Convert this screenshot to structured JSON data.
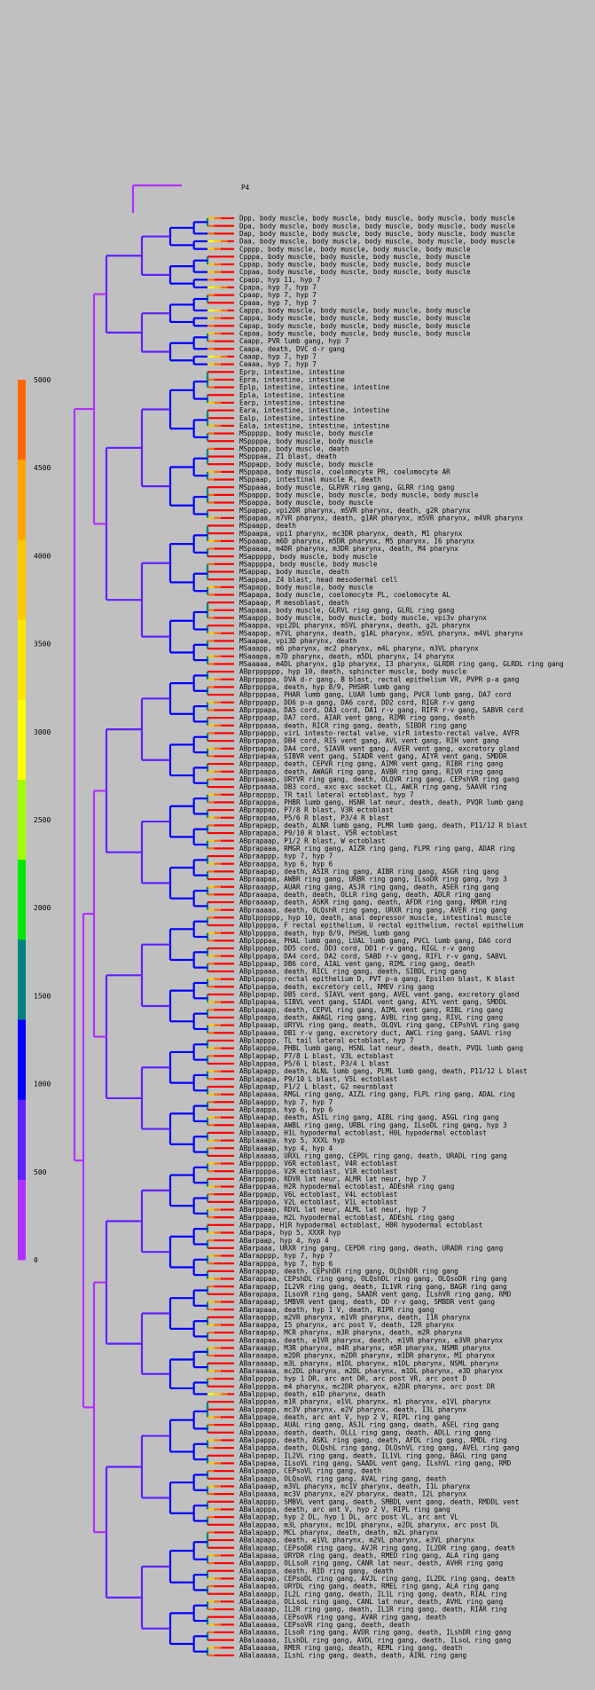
{
  "root_label": "P4",
  "scale": {
    "ticks": [
      5000,
      4500,
      4000,
      3500,
      3000,
      2500,
      2000,
      1500,
      1000,
      500,
      0
    ],
    "colors": [
      "#ff6a00",
      "#ffa500",
      "#ffc800",
      "#ffe600",
      "#ffff00",
      "#a0ff00",
      "#00e800",
      "#008080",
      "#0000ff",
      "#6020ff",
      "#b030ff"
    ]
  },
  "branch_colors": [
    "#b030ff",
    "#6020ff",
    "#0000ff",
    "#008080",
    "#00e800",
    "#a0ff00",
    "#ffff00",
    "#ffc800",
    "#ff6a00",
    "#ff0000"
  ],
  "leaves": [
    "Dpp, body muscle, body muscle, body muscle, body muscle, body muscle",
    "Dpa, body muscle, body muscle, body muscle, body muscle, body muscle",
    "Dap, body muscle, body muscle, body muscle, body muscle, body muscle",
    "Daa, body muscle, body muscle, body muscle, body muscle, body muscle",
    "Cpppp, body muscle, body muscle, body muscle, body muscle",
    "Cpppa, body muscle, body muscle, body muscle, body muscle",
    "Cppap, body muscle, body muscle, body muscle, body muscle",
    "Cppaa, body muscle, body muscle, body muscle, body muscle",
    "Cpapp, hyp 11, hyp 7",
    "Cpapa, hyp 7, hyp 7",
    "Cpaap, hyp 7, hyp 7",
    "Cpaaa, hyp 7, hyp 7",
    "Cappp, body muscle, body muscle, body muscle, body muscle",
    "Cappa, body muscle, body muscle, body muscle, body muscle",
    "Capap, body muscle, body muscle, body muscle, body muscle",
    "Capaa, body muscle, body muscle, body muscle, body muscle",
    "Caapp, PVR lumb gang, hyp 7",
    "Caapa, death, DVC d-r gang",
    "Caaap, hyp 7, hyp 7",
    "Caaaa, hyp 7, hyp 7",
    "Eprp, intestine, intestine",
    "Epra, intestine, intestine",
    "Eplp, intestine, intestine, intestine",
    "Epla, intestine, intestine",
    "Earp, intestine, intestine",
    "Eara, intestine, intestine, intestine",
    "Ealp, intestine, intestine",
    "Eala, intestine, intestine, intestine",
    "MSppppp, body muscle, body muscle",
    "MSppppa, body muscle, body muscle",
    "MSpppap, body muscle, death",
    "MSpppaa, Z1 blast, death",
    "MSppapp, body muscle, body muscle",
    "MSppapa, body muscle, coelomocyte PR, coelomocyte AR",
    "MSppaap, intestinal muscle R, death",
    "MSppaaa, body muscle, GLRVR ring gang, GLRR ring gang",
    "MSpappp, body muscle, body muscle, body muscle, body muscle",
    "MSpappa, body muscle, body muscle",
    "MSpapap, vpi2DR pharynx, mSVR pharynx, death, g2R pharynx",
    "MSpapaa, m7VR pharynx, death, g1AR pharynx, m5VR pharynx, m4VR pharynx",
    "MSpaapp, death",
    "MSpaapa, vpi1 pharynx, mc3DR pharynx, death, M1 pharynx",
    "MSpaaap, m6D pharynx, m5DR pharynx, M5 pharynx, I6 pharynx",
    "MSpaaaa, m4DR pharynx, m3DR pharynx, death, M4 pharynx",
    "MSappppp, body muscle, body muscle",
    "MSappppa, body muscle, body muscle",
    "MSappap, body muscle, death",
    "MSappaa, Z4 blast, head mesodermal cell",
    "MSapapp, body muscle, body muscle",
    "MSapapa, body muscle, coelomocyte PL, coelomocyte AL",
    "MSapaap, M mesoblast, death",
    "MSapaaa, body muscle, GLRVL ring gang, GLRL ring gang",
    "MSaappp, body muscle, body muscle, body muscle, vpi3v pharynx",
    "MSaappa, vpi2DL pharynx, mSVL pharynx, death, g2L pharynx",
    "MSaapap, m7VL pharynx, death, g1AL pharynx, m5VL pharynx, m4VL pharynx",
    "MSaapaa, vpi3D pharynx, death",
    "MSaaapp, m6 pharynx, mc2 pharynx, m4L pharynx, m3VL pharynx",
    "MSaaapa, m7D pharynx, death, m5DL pharynx, I4 pharynx",
    "MSaaaaa, m4DL pharynx, g1p pharynx, I3 pharynx, GLRDR ring gang, GLRDL ring gang",
    "ABprpppppp, hyp 10, death, sphincter muscle, body muscle",
    "ABprppppa, DVA d-r gang, B blast, rectal epithelium VR, PVPR p-a gang",
    "ABprppppa, death, hyp 8/9, PHSHR lumb gang",
    "ABprpppaa, PHAR lumb gang, LUAR lumb gang, PVCR lumb gang, DA7 cord",
    "ABprppapp, DD6 p-a gang, DA6 cord, DD2 cord, RIGR r-v gang",
    "ABprppapa, DA5 cord, DA3 cord, DA1 r-v gang, RIFR r-v gang, SABVR cord",
    "ABprppaap, DA7 cord, AIAR vent gang, RIMR ring gang, death",
    "ABprppaaa, death, RICR ring gang, death, SIBDR ring gang",
    "ABprpappp, virL intesto-rectal valve, virR intesto-rectal valve, AVFR",
    "ABprpappa, DB4 cord, RIS vent gang, AVL vent gang, RIH vent gang",
    "ABprpapap, DA4 cord, SIAVR vent gang, AVER vent gang, excretory gland",
    "ABprpapaa, SIBVR vent gang, SIADR vent gang, AIYR vent gang, SMDDR",
    "ABprpaapp, death, CEPVR ring gang, AIMR vent gang, RIBR ring gang",
    "ABprpaapa, death, AWAGR ring gang, AVBR ring gang, RIVR ring gang",
    "ABprpaaap, URYVR ring gang, death, OLQVR ring gang, CEPshVR ring gang",
    "ABprpaaaa, DB3 cord, exc exc socket CL, AWCR ring gang, SAAVR ring",
    "ABprapppp, TR tail lateral ectoblast, hyp 7",
    "ABprapppa, PHBR lumb gang, HSNR lat neur, death, death, PVQR lumb gang",
    "ABprappap, P7/8 R blast, V3R ectoblast",
    "ABprappaa, P5/6 R blast, P3/4 R blast",
    "ABprapapp, death, ALNR lumb gang, PLMR lumb gang, death, P11/12 R blast",
    "ABprapapa, P9/10 R blast, V5R ectoblast",
    "ABprapaap, P1/2 R blast, W ectoblast",
    "ABprapaaa, RMGR ring gang, AIZR ring gang, FLPR ring gang, ADAR ring",
    "ABpraappp, hyp 7, hyp 7",
    "ABpraappa, hyp 6, hyp 6",
    "ABpraapap, death, ASIR ring gang, AIBR ring gang, ASGR ring gang",
    "ABpraapaa, AWBR ring gang, URBR ring gang, ILsoDR ring gang, hyp 3",
    "ABpraaapp, AUAR ring gang, ASJR ring gang, death, ASER ring gang",
    "ABpraaapa, death, death, OLLR ring gang, death, ADLR ring gang",
    "ABpraaaap, death, ASKR ring gang, death, AFDR ring gang, RMDR ring",
    "ABpraaaaa, death, OLQshR ring gang, URXR ring gang, AVER ring gang",
    "ABplpppppp, hyp 10, death, anal depressor muscle, intestinal muscle",
    "ABplppppa, F rectal epithelium, U rectal epithelium, rectal epithelium",
    "ABplppppa, death, hyp 8/9, PHSHL lumb gang",
    "ABplpppaa, PHAL lumb gang, LUAL lumb gang, PVCL lumb gang, DA6 cord",
    "ABplppapp, DD5 cord, DD3 cord, DD1 r-v gang, RIGL r-v gang",
    "ABplppapa, DA4 cord, DA2 cord, SABD r-v gang, RIFL r-v gang, SABVL",
    "ABplppaap, DB6 cord, AIAL vent gang, RIML ring gang, death",
    "ABplppaaa, death, RICL ring gang, death, SIBDL ring gang",
    "ABplpappp, rectal epithelium D, PVT p-a gang, Epsilon blast, K blast",
    "ABplpappa, death, excretory cell, RMEV ring gang",
    "ABplpapap, DB5 cord, SIAVL vent gang, AVEL vent gang, excretory gland",
    "ABplpapaa, SIBVL vent gang, SIADL vent gang, AIYL vent gang, SMDDL",
    "ABplpaapp, death, CEPVL ring gang, AIML vent gang, RIBL ring gang",
    "ABplpaapa, death, AWAGL ring gang, AVBL ring gang, RIVL ring gang",
    "ABplpaaap, URYVL ring gang, death, OLQVL ring gang, CEPshVL ring gang",
    "ABplpaaaa, DB1 r-v gang, excretory duct, AWCL ring gang, SAAVL ring",
    "ABplapppp, TL tail lateral ectoblast, hyp 7",
    "ABplapppa, PHBL lumb gang, HSNL lat neur, death, death, PVQL lumb gang",
    "ABplappap, P7/8 L blast, V3L ectoblast",
    "ABplappaa, P5/6 L blast, P3/4 L blast",
    "ABplapapp, death, ALNL lumb gang, PLML lumb gang, death, P11/12 L blast",
    "ABplapapa, P9/10 L blast, V5L ectoblast",
    "ABplapaap, P1/2 L blast, G2 neuroblast",
    "ABplapaaa, RMGL ring gang, AIZL ring gang, FLPL ring gang, ADAL ring",
    "ABplaappp, hyp 7, hyp 7",
    "ABplaappa, hyp 6, hyp 6",
    "ABplaapap, death, ASIL ring gang, AIBL ring gang, ASGL ring gang",
    "ABplaapaa, AWBL ring gang, URBL ring gang, ILsoDL ring gang, hyp 3",
    "ABplaaapp, H1L hypodermal ectoblast, H0L hypodermal ectoblast",
    "ABplaaapa, hyp 5, XXXL hyp",
    "ABplaaaap, hyp 4, hyp 4",
    "ABplaaaaa, URXL ring gang, CEPDL ring gang, death, URADL ring gang",
    "ABarppppp, V6R ectoblast, V4R ectoblast",
    "ABarppppa, V2R ectoblast, V1R ectoblast",
    "ABarpppap, RDVR lat neur, ALMR lat neur, hyp 7",
    "ABarpppaa, H2R hypodermal ectoblast, ADEshR ring gang",
    "ABarppapp, V6L ectoblast, V4L ectoblast",
    "ABarppapa, V2L ectoblast, V1L ectoblast",
    "ABarppaap, RDVL lat neur, ALML lat neur, hyp 7",
    "ABarppaaa, H2L hypodermal ectoblast, ADEshL ring gang",
    "ABarpapp, H1R hypodermal ectoblast, H0R hypodermal ectoblast",
    "ABarpapa, hyp 5, XXXR hyp",
    "ABarpaap, hyp 4, hyp 4",
    "ABarpaaa, URXR ring gang, CEPDR ring gang, death, URADR ring gang",
    "ABarapppp, hyp 7, hyp 7",
    "ABarapppa, hyp 7, hyp 6",
    "ABarappap, death, CEPshDR ring gang, OLQshDR ring gang",
    "ABarappaa, CEPshDL ring gang, OLQshDL ring gang, OLQsoDR ring gang",
    "ABarapapp, IL2VR ring gang, death, IL1VR ring gang, BAGR ring gang",
    "ABarapapa, ILsoVR ring gang, SAADR vent gang, ILshVR ring gang, RMD",
    "ABarapaap, SMBVR vent gang, death, DD r-v gang, SMBDR vent gang",
    "ABarapaaa, death, hyp 1 V, death, RIPR ring gang",
    "ABaraappp, m2VR pharynx, m1VR pharynx, death, I1R pharynx",
    "ABaraappa, I5 pharynx, arc post V, death, I2R pharynx",
    "ABaraapap, MCR pharynx, m3R pharynx, death, m2R pharynx",
    "ABaraapaa, death, e1VR pharynx, death, m1VR pharynx, e3VR pharynx",
    "ABaraaapp, M3R pharynx, m4R pharynx, m5R pharynx, NSMR pharynx",
    "ABaraaapa, m2DR pharynx, m2DR pharynx, m1DR pharynx, MI pharynx",
    "ABaraaaap, m3L pharynx, m1DL pharynx, m1DL pharynx, NSML pharynx",
    "ABaraaaaa, mc2DL pharynx, m2DL pharynx, m1DL pharynx, e3D pharynx",
    "ABalppppp, hyp 1 DR, arc ant DR, arc post VR, arc post D",
    "ABalppppa, m4 pharynx, mc2DR pharynx, e2DR pharynx, arc post DR",
    "ABalpppap, death, e1D pharynx, death",
    "ABalpppaa, m1R pharynx, e1VL pharynx, m1 pharynx, e1VL pharynx",
    "ABalppapp, mc3V pharynx, e2V pharynx, death, I3L pharynx",
    "ABalppapa, death, arc ant V, hyp 2 V, RIPL ring gang",
    "ABalppaap, AUAL ring gang, ASJL ring gang, death, ASEL ring gang",
    "ABalppaaa, death, death, OLLL ring gang, death, ADLL ring gang",
    "ABalpappp, death, ASKL ring gang, death, AFDL ring gang, RMDL ring",
    "ABalpappa, death, OLQshL ring gang, DLQshVL ring gang, AVEL ring gang",
    "ABalpapap, IL2VL ring gang, death, IL1VL ring gang, BAGL ring gang",
    "ABalpapaa, ILsoVL ring gang, SAADL vent gang, ILshVL ring gang, RMD",
    "ABalpaapp, CEPsoVL ring gang, death",
    "ABalpaapa, OLQsoVL ring gang, AVAL ring gang, death",
    "ABalpaaap, m3VL pharynx, mc1V pharynx, death, I1L pharynx",
    "ABalpaaaa, mc3V pharynx, e2V pharynx, death, I2L pharynx",
    "ABalapppp, SMBVL vent gang, death, SMBDL vent gang, death, RMDDL vent",
    "ABalapppa, death, arc ant V, hyp 2 V, RIPL ring gang",
    "ABalappap, hyp 2 DL, hyp 1 DL, arc post VL, arc ant VL",
    "ABalappaa, m3L pharynx, mc1DL pharynx, e2DL pharynx, arc post DL",
    "ABalapapp, MCL pharynx, death, death, m2L pharynx",
    "ABalapapa, death, e1VL pharynx, m2VL pharynx, e3VL pharynx",
    "ABalapaap, CEPsoDR ring gang, AVJR ring gang, IL2DR ring gang, death",
    "ABalapaaa, URYDR ring gang, death, RMED ring gang, ALA ring gang",
    "ABalaappp, OLLsoR ring gang, CANR lat neur, death, AVHR ring gang",
    "ABalaappa, death, RID ring gang, death",
    "ABalaapap, CEPsoDL ring gang, AVJL ring gang, IL2DL ring gang, death",
    "ABalaapaa, URYDL ring gang, death, RMEL ring gang, ALA ring gang",
    "ABalaaapp, IL2L ring gang, death, IL1L ring gang, death, RIAL ring",
    "ABalaaapa, OLLsoL ring gang, CANL lat neur, death, AVHL ring gang",
    "ABalaaaap, IL2R ring gang, death, IL1R ring gang, death, RIAR ring",
    "ABalaaaaa, CEPsoVR ring gang, AVAR ring gang, death",
    "ABalaaaaa, CEPsoVR ring gang, death, death",
    "ABalaaaaa, ILsoR ring gang, AVDR ring gang, death, ILshDR ring gang",
    "ABalaaaaa, ILshDL ring gang, AVDL ring gang, death, ILsoL ring gang",
    "ABalaaaaa, RMER ring gang, death, REML ring gang, death",
    "ABalaaaaa, ILshL ring gang, death, death, AINL ring gang"
  ]
}
